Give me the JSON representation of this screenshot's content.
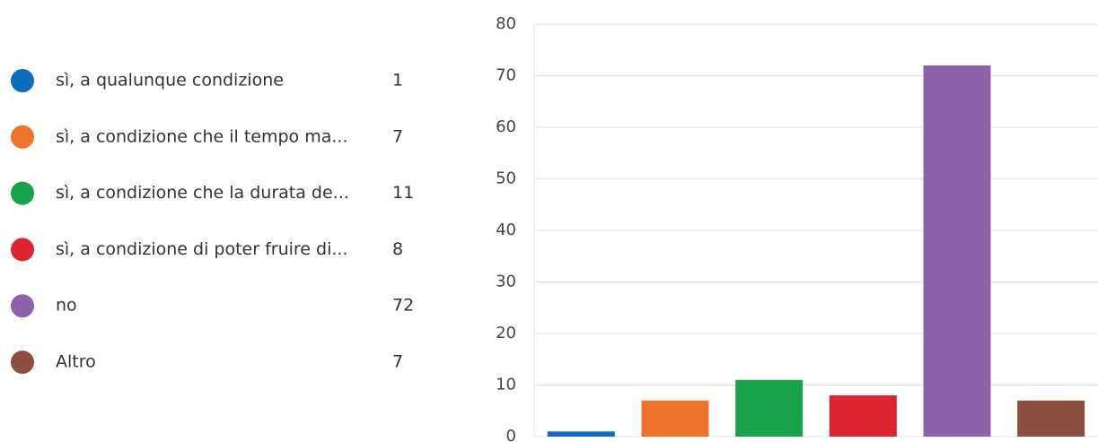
{
  "chart_data": {
    "type": "bar",
    "categories": [
      "sì, a qualunque condizione",
      "sì, a condizione che il tempo ma...",
      "sì, a condizione che la durata de...",
      "sì, a condizione di poter fruire di...",
      "no",
      "Altro"
    ],
    "values": [
      1,
      7,
      11,
      8,
      72,
      7
    ],
    "colors": [
      "#0f6cbd",
      "#ed7428",
      "#18a24a",
      "#dc2530",
      "#8c62ab",
      "#8a4f3f"
    ],
    "ylim": [
      0,
      80
    ],
    "yticks": [
      0,
      10,
      20,
      30,
      40,
      50,
      60,
      70,
      80
    ],
    "grid": true
  }
}
